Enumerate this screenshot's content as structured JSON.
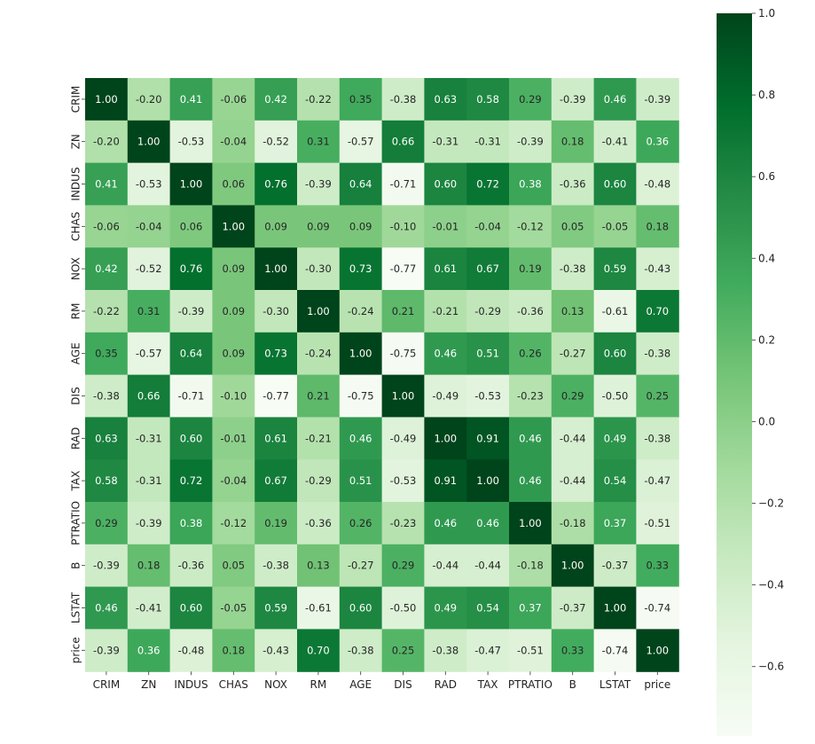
{
  "chart_data": {
    "type": "heatmap",
    "labels": [
      "CRIM",
      "ZN",
      "INDUS",
      "CHAS",
      "NOX",
      "RM",
      "AGE",
      "DIS",
      "RAD",
      "TAX",
      "PTRATIO",
      "B",
      "LSTAT",
      "price"
    ],
    "values": [
      [
        1.0,
        -0.2,
        0.41,
        -0.06,
        0.42,
        -0.22,
        0.35,
        -0.38,
        0.63,
        0.58,
        0.29,
        -0.39,
        0.46,
        -0.39
      ],
      [
        -0.2,
        1.0,
        -0.53,
        -0.04,
        -0.52,
        0.31,
        -0.57,
        0.66,
        -0.31,
        -0.31,
        -0.39,
        0.18,
        -0.41,
        0.36
      ],
      [
        0.41,
        -0.53,
        1.0,
        0.06,
        0.76,
        -0.39,
        0.64,
        -0.71,
        0.6,
        0.72,
        0.38,
        -0.36,
        0.6,
        -0.48
      ],
      [
        -0.06,
        -0.04,
        0.06,
        1.0,
        0.09,
        0.09,
        0.09,
        -0.1,
        -0.01,
        -0.04,
        -0.12,
        0.05,
        -0.05,
        0.18
      ],
      [
        0.42,
        -0.52,
        0.76,
        0.09,
        1.0,
        -0.3,
        0.73,
        -0.77,
        0.61,
        0.67,
        0.19,
        -0.38,
        0.59,
        -0.43
      ],
      [
        -0.22,
        0.31,
        -0.39,
        0.09,
        -0.3,
        1.0,
        -0.24,
        0.21,
        -0.21,
        -0.29,
        -0.36,
        0.13,
        -0.61,
        0.7
      ],
      [
        0.35,
        -0.57,
        0.64,
        0.09,
        0.73,
        -0.24,
        1.0,
        -0.75,
        0.46,
        0.51,
        0.26,
        -0.27,
        0.6,
        -0.38
      ],
      [
        -0.38,
        0.66,
        -0.71,
        -0.1,
        -0.77,
        0.21,
        -0.75,
        1.0,
        -0.49,
        -0.53,
        -0.23,
        0.29,
        -0.5,
        0.25
      ],
      [
        0.63,
        -0.31,
        0.6,
        -0.01,
        0.61,
        -0.21,
        0.46,
        -0.49,
        1.0,
        0.91,
        0.46,
        -0.44,
        0.49,
        -0.38
      ],
      [
        0.58,
        -0.31,
        0.72,
        -0.04,
        0.67,
        -0.29,
        0.51,
        -0.53,
        0.91,
        1.0,
        0.46,
        -0.44,
        0.54,
        -0.47
      ],
      [
        0.29,
        -0.39,
        0.38,
        -0.12,
        0.19,
        -0.36,
        0.26,
        -0.23,
        0.46,
        0.46,
        1.0,
        -0.18,
        0.37,
        -0.51
      ],
      [
        -0.39,
        0.18,
        -0.36,
        0.05,
        -0.38,
        0.13,
        -0.27,
        0.29,
        -0.44,
        -0.44,
        -0.18,
        1.0,
        -0.37,
        0.33
      ],
      [
        0.46,
        -0.41,
        0.6,
        -0.05,
        0.59,
        -0.61,
        0.6,
        -0.5,
        0.49,
        0.54,
        0.37,
        -0.37,
        1.0,
        -0.74
      ],
      [
        -0.39,
        0.36,
        -0.48,
        0.18,
        -0.43,
        0.7,
        -0.38,
        0.25,
        -0.38,
        -0.47,
        -0.51,
        0.33,
        -0.74,
        1.0
      ]
    ],
    "colorbar": {
      "vmin": -0.77,
      "vmax": 1.0,
      "ticks": [
        1.0,
        0.8,
        0.6,
        0.4,
        0.2,
        0.0,
        -0.2,
        -0.4,
        -0.6
      ],
      "tick_labels": [
        "1.0",
        "0.8",
        "0.6",
        "0.4",
        "0.2",
        "0.0",
        "−0.2",
        "−0.4",
        "−0.6"
      ]
    },
    "colormap": "Greens",
    "annotations": true,
    "value_format": "0.00"
  }
}
